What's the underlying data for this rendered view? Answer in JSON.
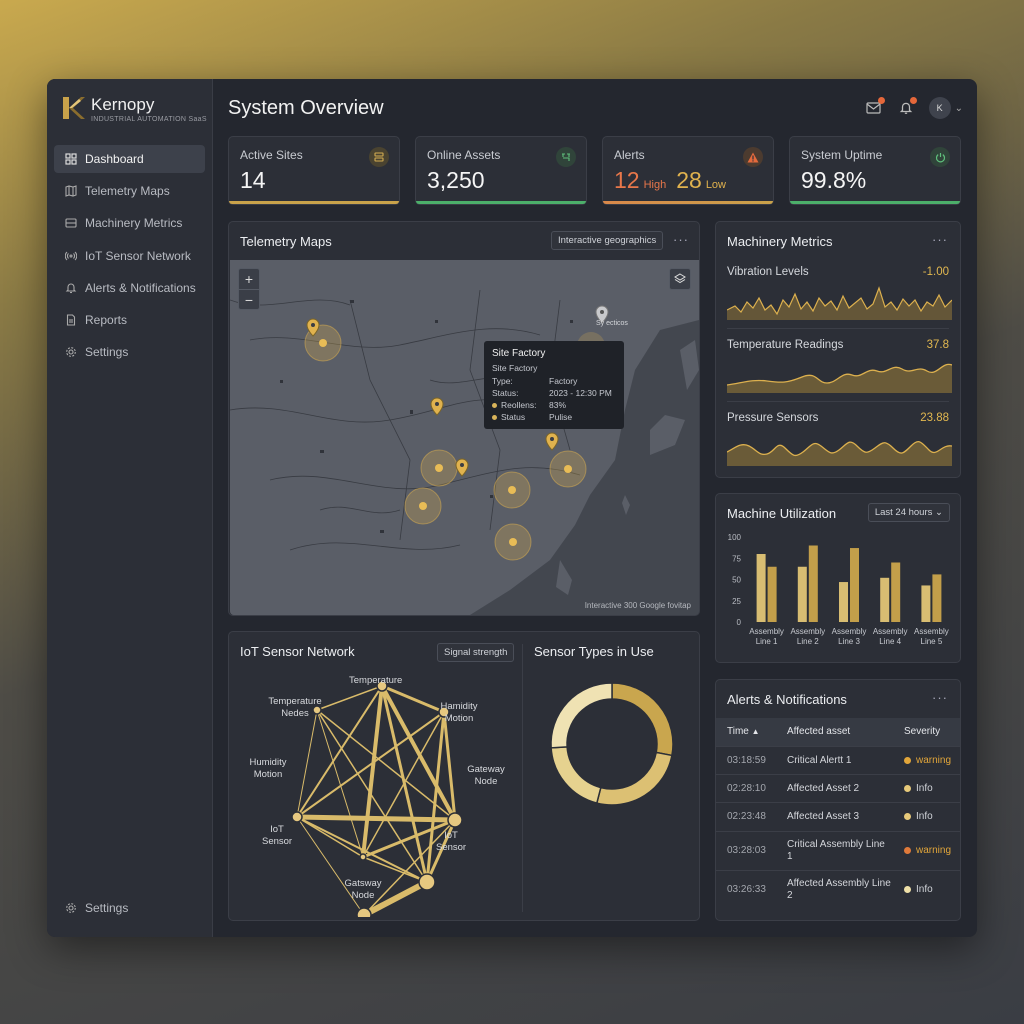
{
  "brand": {
    "name": "Kernopy",
    "subtitle": "INDUSTRIAL AUTOMATION SaaS"
  },
  "sidebar": {
    "items": [
      {
        "label": "Dashboard",
        "icon": "grid-icon",
        "active": true
      },
      {
        "label": "Telemetry Maps",
        "icon": "map-icon"
      },
      {
        "label": "Machinery Metrics",
        "icon": "server-icon"
      },
      {
        "label": "IoT Sensor Network",
        "icon": "signal-icon"
      },
      {
        "label": "Alerts & Notifications",
        "icon": "bell-icon"
      },
      {
        "label": "Reports",
        "icon": "document-icon"
      },
      {
        "label": "Settings",
        "icon": "gear-icon"
      }
    ],
    "bottom": {
      "label": "Settings",
      "icon": "gear-icon"
    }
  },
  "header": {
    "title": "System Overview",
    "avatar": "K"
  },
  "kpis": {
    "active_sites": {
      "label": "Active Sites",
      "value": "14",
      "accent": "#c9a24a"
    },
    "online_assets": {
      "label": "Online Assets",
      "value": "3,250",
      "accent": "#4caf6a"
    },
    "alerts": {
      "label": "Alerts",
      "high_value": "12",
      "high_label": "High",
      "low_value": "28",
      "low_label": "Low",
      "accent": "#d9884a"
    },
    "uptime": {
      "label": "System Uptime",
      "value": "99.8%",
      "accent": "#4caf6a"
    }
  },
  "telemetry": {
    "title": "Telemetry Maps",
    "filter": "Interactive geographics",
    "zoom_in": "+",
    "zoom_out": "−",
    "attribution": "Interactive 300 Google fovitap",
    "city_label": "Sy ecticos",
    "tooltip": {
      "title": "Site Factory",
      "subtitle": "Site Factory",
      "rows": [
        {
          "k": "Type:",
          "v": "Factory",
          "dot": false
        },
        {
          "k": "Status:",
          "v": "2023 - 12:30 PM",
          "dot": false
        },
        {
          "k": "Reollens:",
          "v": "83%",
          "dot": true
        },
        {
          "k": "Status",
          "v": "Pulise",
          "dot": true
        }
      ]
    }
  },
  "machinery": {
    "title": "Machinery Metrics",
    "metrics": [
      {
        "label": "Vibration Levels",
        "value": "-1.00"
      },
      {
        "label": "Temperature Readings",
        "value": "37.8"
      },
      {
        "label": "Pressure Sensors",
        "value": "23.88"
      }
    ]
  },
  "utilization": {
    "title": "Machine Utilization",
    "range": "Last 24 hours",
    "chart_data": {
      "type": "bar",
      "categories": [
        "Assembly Line 1",
        "Assembly Line 2",
        "Assembly Line 3",
        "Assembly Line 4",
        "Assembly Line 5"
      ],
      "category_lines": [
        [
          "Assembly",
          "Line 1"
        ],
        [
          "Assembly",
          "Line 2"
        ],
        [
          "Assembly",
          "Line 3"
        ],
        [
          "Assembly",
          "Line 4"
        ],
        [
          "Assembly",
          "Line 5"
        ]
      ],
      "series": [
        {
          "values": [
            80,
            65,
            47,
            52,
            43
          ],
          "color": "#d8bd72"
        },
        {
          "values": [
            65,
            90,
            87,
            70,
            56
          ],
          "color": "#c39f4a"
        }
      ],
      "yticks": [
        0,
        25,
        50,
        75,
        100
      ],
      "ylim": [
        0,
        100
      ]
    }
  },
  "iot": {
    "title": "IoT Sensor Network",
    "filter": "Signal strength",
    "nodes": [
      "Temperature",
      "Hamidity Motion",
      "Gateway Node",
      "IoT Sensor",
      "Gatsway Node",
      "IoT Sensor",
      "Humidity Motion",
      "Temperature Nedes"
    ]
  },
  "sensor_types": {
    "title": "Sensor Types in Use",
    "chart_data": {
      "type": "pie",
      "values": [
        28,
        26,
        20,
        26
      ],
      "colors": [
        "#c9a64e",
        "#dcc073",
        "#e6d28f",
        "#efe2b3"
      ]
    }
  },
  "alerts_table": {
    "title": "Alerts & Notifications",
    "headers": {
      "time": "Time",
      "asset": "Affected asset",
      "severity": "Severity"
    },
    "rows": [
      {
        "time": "03:18:59",
        "asset": "Critical Alertt 1",
        "severity": "warning",
        "color": "#e2a63a"
      },
      {
        "time": "02:28:10",
        "asset": "Affected Asset 2",
        "severity": "Info",
        "color": "#e7c97a"
      },
      {
        "time": "02:23:48",
        "asset": "Affected Asset 3",
        "severity": "Info",
        "color": "#e7c97a"
      },
      {
        "time": "03:28:03",
        "asset": "Critical Assembly Line 1",
        "severity": "warning",
        "color": "#e07a3a"
      },
      {
        "time": "03:26:33",
        "asset": "Affected Assembly Line 2",
        "severity": "Info",
        "color": "#efe0a8"
      }
    ]
  }
}
